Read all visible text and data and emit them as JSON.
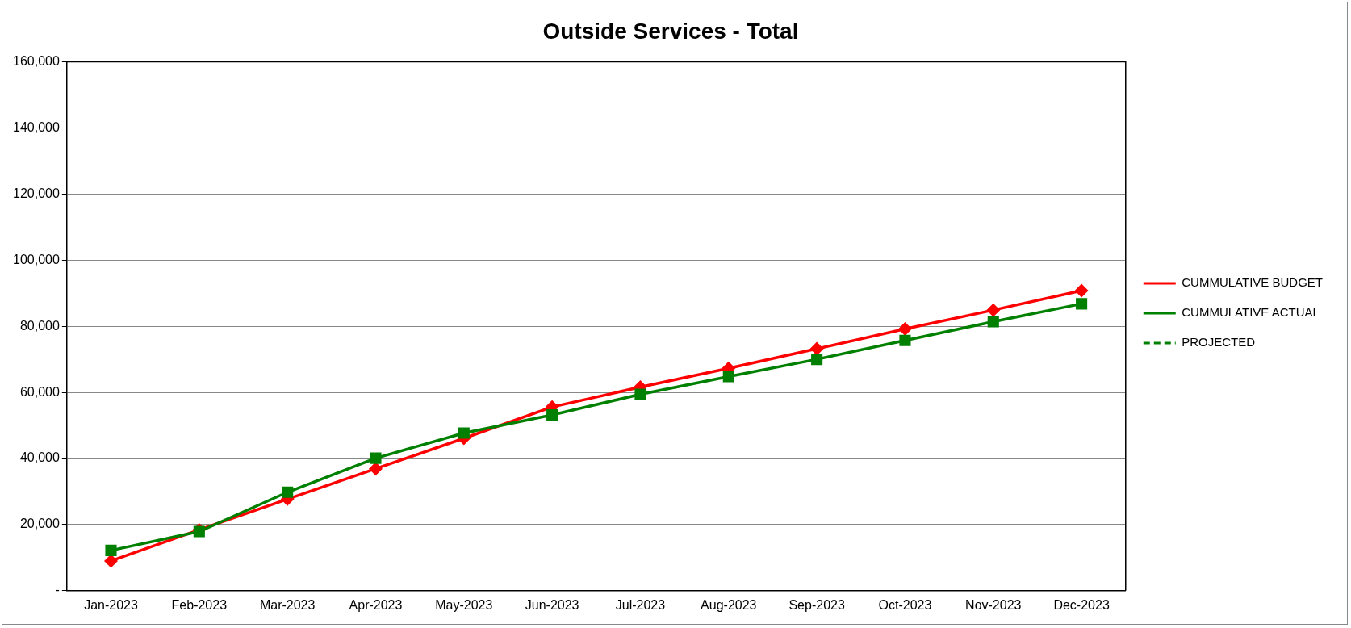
{
  "chart_data": {
    "type": "line",
    "title": "Outside Services - Total",
    "categories": [
      "Jan-2023",
      "Feb-2023",
      "Mar-2023",
      "Apr-2023",
      "May-2023",
      "Jun-2023",
      "Jul-2023",
      "Aug-2023",
      "Sep-2023",
      "Oct-2023",
      "Nov-2023",
      "Dec-2023"
    ],
    "series": [
      {
        "name": "CUMMULATIVE BUDGET",
        "color": "#ff0000",
        "marker": "diamond",
        "line_style": "solid",
        "values": [
          9000,
          18400,
          27700,
          36900,
          46100,
          55600,
          61600,
          67300,
          73200,
          79200,
          84900,
          90800
        ]
      },
      {
        "name": "CUMMULATIVE ACTUAL",
        "color": "#008000",
        "marker": "square",
        "line_style": "solid",
        "values": [
          12200,
          17900,
          29800,
          40100,
          47700,
          53200,
          59400,
          64800,
          70000,
          75700,
          81400,
          86800
        ]
      },
      {
        "name": "PROJECTED",
        "color": "#008000",
        "marker": "none",
        "line_style": "dashed",
        "values": [
          null,
          null,
          null,
          null,
          null,
          null,
          null,
          null,
          null,
          null,
          null,
          null
        ]
      }
    ],
    "ylim": [
      0,
      160000
    ],
    "yticks": [
      {
        "value": 0,
        "label": "-"
      },
      {
        "value": 20000,
        "label": "20,000"
      },
      {
        "value": 40000,
        "label": "40,000"
      },
      {
        "value": 60000,
        "label": "60,000"
      },
      {
        "value": 80000,
        "label": "80,000"
      },
      {
        "value": 100000,
        "label": "100,000"
      },
      {
        "value": 120000,
        "label": "120,000"
      },
      {
        "value": 140000,
        "label": "140,000"
      },
      {
        "value": 160000,
        "label": "160,000"
      }
    ],
    "grid": "y",
    "legend": "right"
  }
}
